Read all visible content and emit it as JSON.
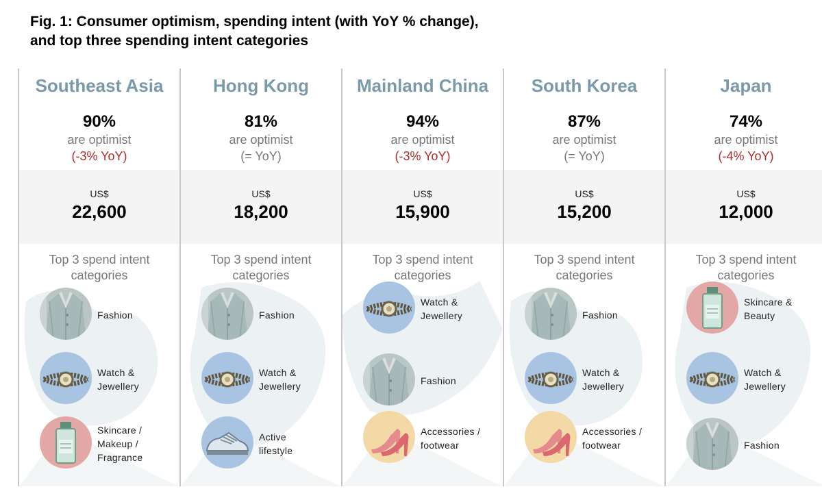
{
  "title_line1": "Fig. 1: Consumer optimism, spending intent (with YoY % change),",
  "title_line2": "and top three spending intent categories",
  "chart_data": {
    "type": "table",
    "optimist_label": "are optimist",
    "currency_label": "US$",
    "top3_heading_line1": "Top 3 spend intent",
    "top3_heading_line2": "categories",
    "colors": {
      "region": "#7a9aaa",
      "negative_yoy": "#b02a2a",
      "neutral_yoy": "#777777",
      "band": "#f4f4f4"
    },
    "regions": [
      {
        "name": "Southeast Asia",
        "optimism_pct": 90,
        "optimism_text": "90%",
        "yoy_text": "(-3% YoY)",
        "yoy_change": -3,
        "spend_value": 22600,
        "spend_text": "22,600",
        "categories": [
          {
            "icon": "fashion-icon",
            "line1": "Fashion",
            "line2": "",
            "line3": ""
          },
          {
            "icon": "watch-icon",
            "line1": "Watch &",
            "line2": "Jewellery",
            "line3": ""
          },
          {
            "icon": "skincare-icon",
            "line1": "Skincare /",
            "line2": "Makeup /",
            "line3": "Fragrance"
          }
        ]
      },
      {
        "name": "Hong Kong",
        "optimism_pct": 81,
        "optimism_text": "81%",
        "yoy_text": "(= YoY)",
        "yoy_change": 0,
        "spend_value": 18200,
        "spend_text": "18,200",
        "categories": [
          {
            "icon": "fashion-icon",
            "line1": "Fashion",
            "line2": "",
            "line3": ""
          },
          {
            "icon": "watch-icon",
            "line1": "Watch &",
            "line2": "Jewellery",
            "line3": ""
          },
          {
            "icon": "sneaker-icon",
            "line1": "Active",
            "line2": "lifestyle",
            "line3": ""
          }
        ]
      },
      {
        "name": "Mainland China",
        "optimism_pct": 94,
        "optimism_text": "94%",
        "yoy_text": "(-3% YoY)",
        "yoy_change": -3,
        "spend_value": 15900,
        "spend_text": "15,900",
        "categories": [
          {
            "icon": "watch-icon",
            "line1": "Watch &",
            "line2": "Jewellery",
            "line3": ""
          },
          {
            "icon": "fashion-icon",
            "line1": "Fashion",
            "line2": "",
            "line3": ""
          },
          {
            "icon": "heels-icon",
            "line1": "Accessories /",
            "line2": "footwear",
            "line3": ""
          }
        ]
      },
      {
        "name": "South Korea",
        "optimism_pct": 87,
        "optimism_text": "87%",
        "yoy_text": "(= YoY)",
        "yoy_change": 0,
        "spend_value": 15200,
        "spend_text": "15,200",
        "categories": [
          {
            "icon": "fashion-icon",
            "line1": "Fashion",
            "line2": "",
            "line3": ""
          },
          {
            "icon": "watch-icon",
            "line1": "Watch &",
            "line2": "Jewellery",
            "line3": ""
          },
          {
            "icon": "heels-icon",
            "line1": "Accessories /",
            "line2": "footwear",
            "line3": ""
          }
        ]
      },
      {
        "name": "Japan",
        "optimism_pct": 74,
        "optimism_text": "74%",
        "yoy_text": "(-4% YoY)",
        "yoy_change": -4,
        "spend_value": 12000,
        "spend_text": "12,000",
        "categories": [
          {
            "icon": "skincare-icon",
            "line1": "Skincare &",
            "line2": "Beauty",
            "line3": ""
          },
          {
            "icon": "watch-icon",
            "line1": "Watch &",
            "line2": "Jewellery",
            "line3": ""
          },
          {
            "icon": "fashion-icon",
            "line1": "Fashion",
            "line2": "",
            "line3": ""
          }
        ]
      }
    ]
  }
}
